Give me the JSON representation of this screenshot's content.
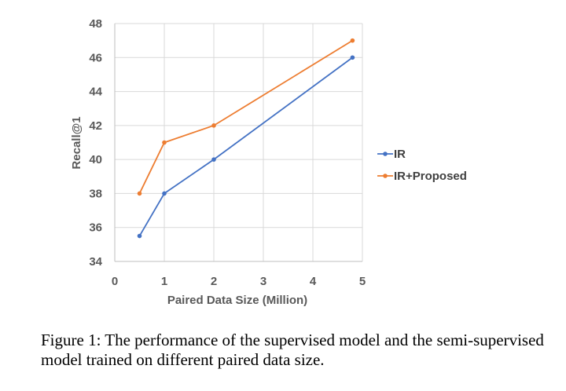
{
  "chart_data": {
    "type": "line",
    "xlabel": "Paired Data Size (Million)",
    "ylabel": "Recall@1",
    "xlim": [
      0,
      5
    ],
    "ylim": [
      34,
      48
    ],
    "xticks": [
      0,
      1,
      2,
      3,
      4,
      5
    ],
    "yticks": [
      34,
      36,
      38,
      40,
      42,
      44,
      46,
      48
    ],
    "grid": true,
    "legend_position": "right",
    "series": [
      {
        "name": "IR",
        "color": "#4472C4",
        "x": [
          0.5,
          1,
          2,
          4.8
        ],
        "y": [
          35.5,
          38,
          40,
          46
        ]
      },
      {
        "name": "IR+Proposed",
        "color": "#ED7D31",
        "x": [
          0.5,
          1,
          2,
          4.8
        ],
        "y": [
          38,
          41,
          42,
          47
        ]
      }
    ]
  },
  "caption": "Figure 1: The performance of the supervised model and the semi-supervised model trained on different paired data size."
}
